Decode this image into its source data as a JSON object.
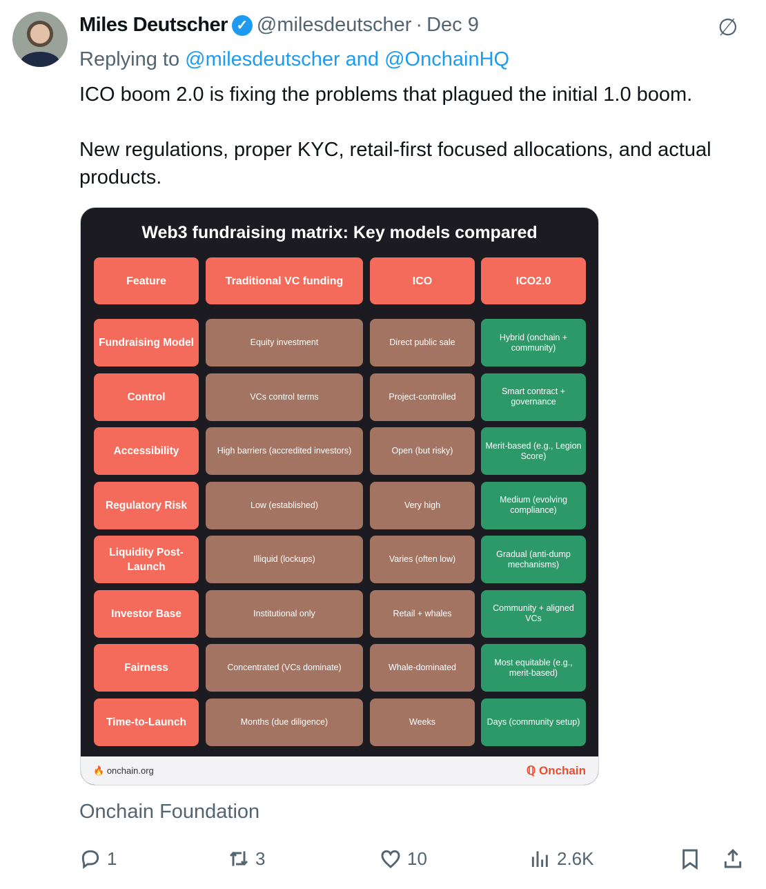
{
  "tweet": {
    "author_name": "Miles Deutscher",
    "handle": "@milesdeutscher",
    "separator": "·",
    "date": "Dec 9",
    "replying_prefix": "Replying to",
    "replying_to": "@milesdeutscher and @OnchainHQ",
    "text": "ICO boom 2.0 is fixing the problems that plagued the initial 1.0 boom.\n\nNew regulations, proper KYC, retail-first focused allocations, and actual products.",
    "caption": "Onchain Foundation",
    "accent": "#1d9bf0"
  },
  "image": {
    "title": "Web3 fundraising matrix: Key models compared",
    "headers": [
      "Feature",
      "Traditional VC funding",
      "ICO",
      "ICO2.0"
    ],
    "rows": [
      [
        "Fundraising Model",
        "Equity investment",
        "Direct public sale",
        "Hybrid (onchain + community)"
      ],
      [
        "Control",
        "VCs control terms",
        "Project-controlled",
        "Smart contract + governance"
      ],
      [
        "Accessibility",
        "High barriers (accredited investors)",
        "Open (but risky)",
        "Merit-based (e.g., Legion Score)"
      ],
      [
        "Regulatory Risk",
        "Low (established)",
        "Very high",
        "Medium (evolving compliance)"
      ],
      [
        "Liquidity Post-Launch",
        "Illiquid (lockups)",
        "Varies (often low)",
        "Gradual (anti-dump mechanisms)"
      ],
      [
        "Investor Base",
        "Institutional only",
        "Retail + whales",
        "Community + aligned VCs"
      ],
      [
        "Fairness",
        "Concentrated (VCs dominate)",
        "Whale-dominated",
        "Most equitable (e.g., merit-based)"
      ],
      [
        "Time-to-Launch",
        "Months (due diligence)",
        "Weeks",
        "Days (community setup)"
      ]
    ],
    "footer_site": "onchain.org",
    "footer_brand": "Onchain",
    "colors": {
      "header": "#f46b5b",
      "traditional": "#a37462",
      "ico2": "#2e9968",
      "background": "#1c1b21"
    }
  },
  "actions": {
    "replies": "1",
    "reposts": "3",
    "likes": "10",
    "views": "2.6K"
  }
}
